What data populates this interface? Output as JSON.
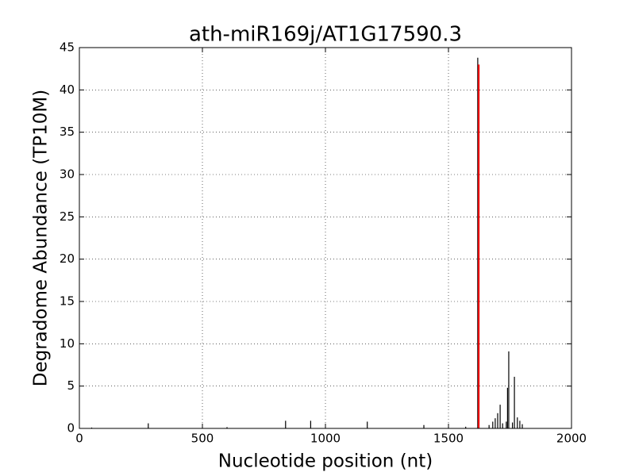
{
  "chart_data": {
    "type": "spike",
    "title": "ath-miR169j/AT1G17590.3",
    "xlabel": "Nucleotide position (nt)",
    "ylabel": "Degradome Abundance (TP10M)",
    "x": [
      50,
      280,
      600,
      838,
      940,
      1170,
      1400,
      1570,
      1619,
      1665,
      1680,
      1690,
      1700,
      1710,
      1720,
      1735,
      1740,
      1745,
      1760,
      1768,
      1780,
      1790,
      1800
    ],
    "values": [
      0.1,
      0.6,
      0.15,
      0.9,
      0.9,
      0.8,
      0.4,
      0.2,
      43.8,
      0.4,
      0.8,
      1.2,
      1.8,
      2.8,
      0.6,
      0.8,
      4.8,
      9.1,
      0.7,
      6.1,
      1.3,
      0.9,
      0.5
    ],
    "color": "#000000",
    "highlight": {
      "x": 1620,
      "value": 43,
      "color": "#ff0000"
    },
    "xlim": [
      0,
      2000
    ],
    "xticks": [
      0,
      500,
      1000,
      1500,
      2000
    ],
    "ylim": [
      0,
      45
    ],
    "yticks": [
      0,
      5,
      10,
      15,
      20,
      25,
      30,
      35,
      40,
      45
    ],
    "grid": true
  }
}
